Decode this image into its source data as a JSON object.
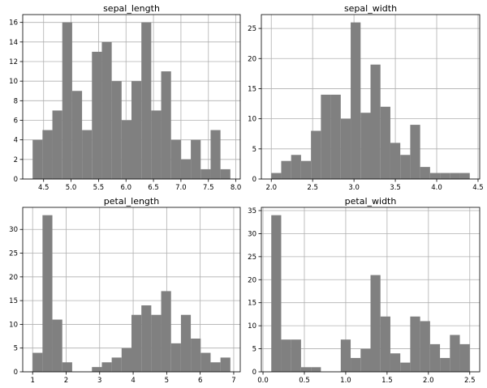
{
  "chart_data": [
    {
      "type": "bar",
      "title": "sepal_length",
      "xlim": [
        4.12,
        8.08
      ],
      "ylim": [
        0,
        16.8
      ],
      "xticks": [
        4.5,
        5.0,
        5.5,
        6.0,
        6.5,
        7.0,
        7.5,
        8.0
      ],
      "xtick_labels": [
        "4.5",
        "5.0",
        "5.5",
        "6.0",
        "6.5",
        "7.0",
        "7.5",
        "8.0"
      ],
      "yticks": [
        0,
        2,
        4,
        6,
        8,
        10,
        12,
        14,
        16
      ],
      "ytick_labels": [
        "0",
        "2",
        "4",
        "6",
        "8",
        "10",
        "12",
        "14",
        "16"
      ],
      "bin_start": 4.3,
      "bin_width": 0.18,
      "values": [
        4,
        5,
        7,
        16,
        9,
        5,
        13,
        14,
        10,
        6,
        10,
        16,
        7,
        11,
        4,
        2,
        4,
        1,
        5,
        1
      ],
      "grid": true,
      "color": "#808080"
    },
    {
      "type": "bar",
      "title": "sepal_width",
      "xlim": [
        1.88,
        4.52
      ],
      "ylim": [
        0,
        27.3
      ],
      "xticks": [
        2.0,
        2.5,
        3.0,
        3.5,
        4.0,
        4.5
      ],
      "xtick_labels": [
        "2.0",
        "2.5",
        "3.0",
        "3.5",
        "4.0",
        "4.5"
      ],
      "yticks": [
        0,
        5,
        10,
        15,
        20,
        25
      ],
      "ytick_labels": [
        "0",
        "5",
        "10",
        "15",
        "20",
        "25"
      ],
      "bin_start": 2.0,
      "bin_width": 0.12,
      "values": [
        1,
        3,
        4,
        3,
        8,
        14,
        14,
        10,
        26,
        11,
        19,
        12,
        6,
        4,
        9,
        2,
        1,
        1,
        1,
        1
      ],
      "grid": true,
      "color": "#808080"
    },
    {
      "type": "bar",
      "title": "petal_length",
      "xlim": [
        0.705,
        7.195
      ],
      "ylim": [
        0,
        34.65
      ],
      "xticks": [
        1,
        2,
        3,
        4,
        5,
        6,
        7
      ],
      "xtick_labels": [
        "1",
        "2",
        "3",
        "4",
        "5",
        "6",
        "7"
      ],
      "yticks": [
        0,
        5,
        10,
        15,
        20,
        25,
        30
      ],
      "ytick_labels": [
        "0",
        "5",
        "10",
        "15",
        "20",
        "25",
        "30"
      ],
      "bin_start": 1.0,
      "bin_width": 0.295,
      "values": [
        4,
        33,
        11,
        2,
        0,
        0,
        1,
        2,
        3,
        5,
        12,
        14,
        12,
        17,
        6,
        12,
        7,
        4,
        2,
        3
      ],
      "grid": true,
      "color": "#808080"
    },
    {
      "type": "bar",
      "title": "petal_width",
      "xlim": [
        -0.02,
        2.62
      ],
      "ylim": [
        0,
        35.7
      ],
      "xticks": [
        0.0,
        0.5,
        1.0,
        1.5,
        2.0,
        2.5
      ],
      "xtick_labels": [
        "0.0",
        "0.5",
        "1.0",
        "1.5",
        "2.0",
        "2.5"
      ],
      "yticks": [
        0,
        5,
        10,
        15,
        20,
        25,
        30,
        35
      ],
      "ytick_labels": [
        "0",
        "5",
        "10",
        "15",
        "20",
        "25",
        "30",
        "35"
      ],
      "bin_start": 0.1,
      "bin_width": 0.12,
      "values": [
        34,
        7,
        7,
        1,
        1,
        0,
        0,
        7,
        3,
        5,
        21,
        12,
        4,
        2,
        12,
        11,
        6,
        3,
        8,
        6
      ],
      "grid": true,
      "color": "#808080"
    }
  ]
}
